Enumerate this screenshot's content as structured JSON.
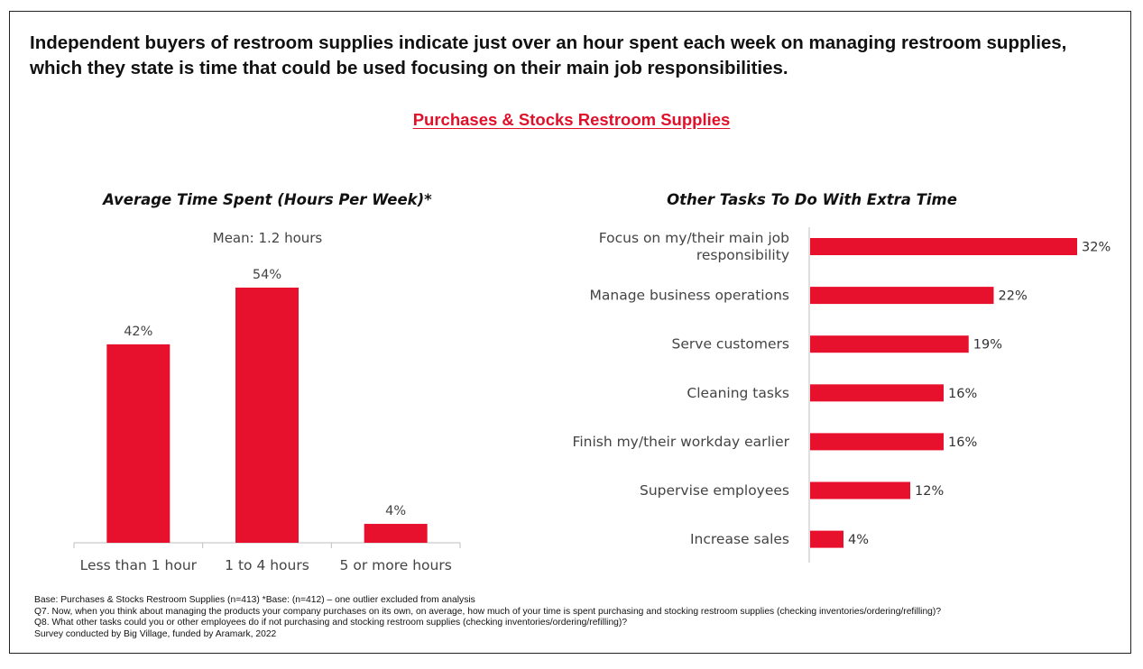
{
  "headline": "Independent buyers of restroom supplies indicate just over an hour spent each week on managing restroom supplies, which they state is time that could be used focusing on their main job responsibilities.",
  "section_title": "Purchases & Stocks Restroom Supplies",
  "colors": {
    "bar": "#e8112d",
    "accent_text": "#e0102b"
  },
  "chart_data": [
    {
      "type": "bar",
      "title": "Average Time Spent (Hours Per Week)*",
      "annotation": "Mean: 1.2 hours",
      "categories": [
        "Less than 1 hour",
        "1 to 4 hours",
        "5 or more hours"
      ],
      "values": [
        42,
        54,
        4
      ],
      "value_labels": [
        "42%",
        "54%",
        "4%"
      ],
      "unit": "%",
      "orientation": "vertical",
      "ylim": [
        0,
        54
      ],
      "grid": false
    },
    {
      "type": "bar",
      "title": "Other Tasks To Do With Extra Time",
      "categories": [
        "Focus on my/their main job responsibility",
        "Manage business operations",
        "Serve customers",
        "Cleaning tasks",
        "Finish my/their workday earlier",
        "Supervise employees",
        "Increase sales"
      ],
      "category_lines": [
        [
          "Focus on my/their main job",
          "responsibility"
        ],
        [
          "Manage business operations"
        ],
        [
          "Serve customers"
        ],
        [
          "Cleaning tasks"
        ],
        [
          "Finish my/their workday earlier"
        ],
        [
          "Supervise employees"
        ],
        [
          "Increase sales"
        ]
      ],
      "values": [
        32,
        22,
        19,
        16,
        16,
        12,
        4
      ],
      "value_labels": [
        "32%",
        "22%",
        "19%",
        "16%",
        "16%",
        "12%",
        "4%"
      ],
      "unit": "%",
      "orientation": "horizontal",
      "xlim": [
        0,
        32
      ],
      "grid": false
    }
  ],
  "footnotes": [
    "Base: Purchases & Stocks Restroom Supplies (n=413) *Base: (n=412) – one outlier excluded from analysis",
    "Q7. Now, when you think about managing the products your company purchases on its own, on average, how much of your time is spent purchasing and stocking restroom supplies (checking inventories/ordering/refilling)?",
    "Q8. What other tasks could you or other employees do if not purchasing and stocking restroom supplies (checking inventories/ordering/refilling)?",
    "Survey conducted by Big Village, funded by Aramark, 2022"
  ]
}
